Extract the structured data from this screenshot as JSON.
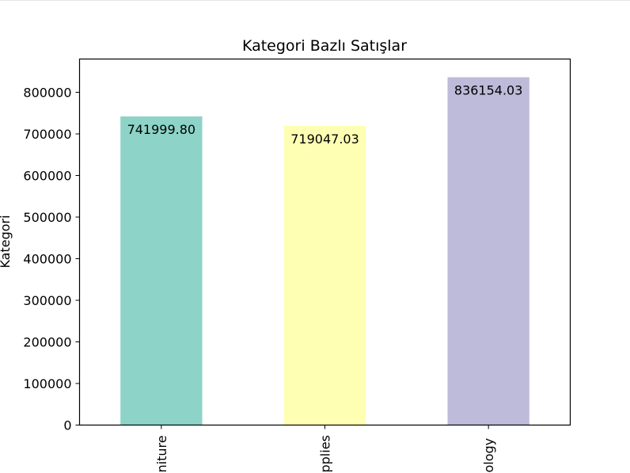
{
  "chart_data": {
    "type": "bar",
    "title": "Kategori Bazlı Satışlar",
    "xlabel": "",
    "ylabel": "Kategori",
    "categories": [
      "Furniture",
      "Office Supplies",
      "Technology"
    ],
    "category_tick_labels_visible": [
      "niture",
      "pplies",
      "ology"
    ],
    "values": [
      741999.8,
      719047.03,
      836154.03
    ],
    "value_labels": [
      "741999.80",
      "719047.03",
      "836154.03"
    ],
    "colors": [
      "#8dd3c7",
      "#ffffb3",
      "#bebada"
    ],
    "ylim": [
      0,
      880000
    ],
    "yticks": [
      0,
      100000,
      200000,
      300000,
      400000,
      500000,
      600000,
      700000,
      800000
    ],
    "ytick_labels": [
      "0",
      "100000",
      "200000",
      "300000",
      "400000",
      "500000",
      "600000",
      "700000",
      "800000"
    ],
    "grid": false,
    "legend": "none"
  }
}
